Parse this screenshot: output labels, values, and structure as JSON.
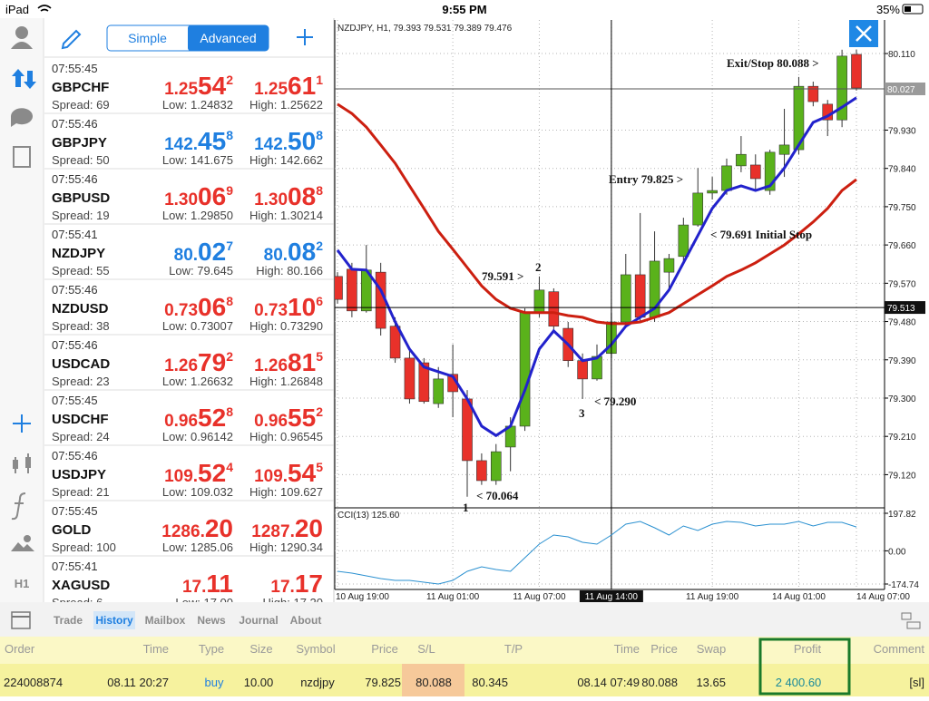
{
  "status_bar": {
    "device": "iPad",
    "time": "9:55 PM",
    "battery": "35%"
  },
  "quote_tabs": {
    "items": [
      "Simple",
      "Advanced"
    ],
    "active": "Advanced"
  },
  "quotes": [
    {
      "time": "07:55:45",
      "symbol": "GBPCHF",
      "spread": "Spread: 69",
      "bid": [
        "1.25",
        "54",
        "2"
      ],
      "ask": [
        "1.25",
        "61",
        "1"
      ],
      "low": "Low: 1.24832",
      "high": "High: 1.25622",
      "color": "#e8312a"
    },
    {
      "time": "07:55:46",
      "symbol": "GBPJPY",
      "spread": "Spread: 50",
      "bid": [
        "142.",
        "45",
        "8"
      ],
      "ask": [
        "142.",
        "50",
        "8"
      ],
      "low": "Low: 141.675",
      "high": "High: 142.662",
      "color": "#1f7fe0"
    },
    {
      "time": "07:55:46",
      "symbol": "GBPUSD",
      "spread": "Spread: 19",
      "bid": [
        "1.30",
        "06",
        "9"
      ],
      "ask": [
        "1.30",
        "08",
        "8"
      ],
      "low": "Low: 1.29850",
      "high": "High: 1.30214",
      "color": "#e8312a"
    },
    {
      "time": "07:55:41",
      "symbol": "NZDJPY",
      "spread": "Spread: 55",
      "bid": [
        "80.",
        "02",
        "7"
      ],
      "ask": [
        "80.",
        "08",
        "2"
      ],
      "low": "Low: 79.645",
      "high": "High: 80.166",
      "color": "#1f7fe0"
    },
    {
      "time": "07:55:46",
      "symbol": "NZDUSD",
      "spread": "Spread: 38",
      "bid": [
        "0.73",
        "06",
        "8"
      ],
      "ask": [
        "0.73",
        "10",
        "6"
      ],
      "low": "Low: 0.73007",
      "high": "High: 0.73290",
      "color": "#e8312a"
    },
    {
      "time": "07:55:46",
      "symbol": "USDCAD",
      "spread": "Spread: 23",
      "bid": [
        "1.26",
        "79",
        "2"
      ],
      "ask": [
        "1.26",
        "81",
        "5"
      ],
      "low": "Low: 1.26632",
      "high": "High: 1.26848",
      "color": "#e8312a"
    },
    {
      "time": "07:55:45",
      "symbol": "USDCHF",
      "spread": "Spread: 24",
      "bid": [
        "0.96",
        "52",
        "8"
      ],
      "ask": [
        "0.96",
        "55",
        "2"
      ],
      "low": "Low: 0.96142",
      "high": "High: 0.96545",
      "color": "#e8312a"
    },
    {
      "time": "07:55:46",
      "symbol": "USDJPY",
      "spread": "Spread: 21",
      "bid": [
        "109.",
        "52",
        "4"
      ],
      "ask": [
        "109.",
        "54",
        "5"
      ],
      "low": "Low: 109.032",
      "high": "High: 109.627",
      "color": "#e8312a"
    },
    {
      "time": "07:55:45",
      "symbol": "GOLD",
      "spread": "Spread: 100",
      "bid": [
        "1286.",
        "20"
      ],
      "ask": [
        "1287.",
        "20"
      ],
      "low": "Low: 1285.06",
      "high": "High: 1290.34",
      "color": "#e8312a"
    },
    {
      "time": "07:55:41",
      "symbol": "XAGUSD",
      "spread": "Spread: 6",
      "bid": [
        "17.",
        "11"
      ],
      "ask": [
        "17.",
        "17"
      ],
      "low": "Low: 17.00",
      "high": "High: 17.20",
      "color": "#e8312a"
    }
  ],
  "sidebar_label": "H1",
  "chart_data": {
    "type": "candlestick",
    "title": "NZDJPY, H1, 79.393 79.531 79.389 79.476",
    "categories": [
      "10 Aug 19:00",
      null,
      null,
      null,
      null,
      null,
      null,
      null,
      "11 Aug 01:00",
      null,
      null,
      null,
      null,
      null,
      "11 Aug 07:00",
      null,
      null,
      null,
      null,
      "11 Aug 14:00",
      null,
      null,
      null,
      null,
      null,
      null,
      "11 Aug 19:00",
      null,
      null,
      null,
      null,
      null,
      "14 Aug 01:00",
      null,
      null,
      null,
      "14 Aug 07:00"
    ],
    "open": [
      79.586,
      79.603,
      79.505,
      79.596,
      79.469,
      79.394,
      79.383,
      79.287,
      79.356,
      79.298,
      79.153,
      79.106,
      79.185,
      79.234,
      79.501,
      79.55,
      79.464,
      79.388,
      79.345,
      79.405,
      79.479,
      79.59,
      79.49,
      79.596,
      79.633,
      79.707,
      79.782,
      79.788,
      79.846,
      79.848,
      79.788,
      79.873,
      79.884,
      80.033,
      79.991,
      79.954,
      80.108
    ],
    "high": [
      79.596,
      79.618,
      79.66,
      79.618,
      79.49,
      79.415,
      79.394,
      79.373,
      79.426,
      79.319,
      79.17,
      79.192,
      79.255,
      79.511,
      79.586,
      79.558,
      79.479,
      79.405,
      79.426,
      79.501,
      79.639,
      79.735,
      79.692,
      79.639,
      79.724,
      79.841,
      79.82,
      79.863,
      79.916,
      79.873,
      79.884,
      79.98,
      80.055,
      80.044,
      80.001,
      80.119,
      80.119
    ],
    "low": [
      79.522,
      79.49,
      79.501,
      79.447,
      79.383,
      79.287,
      79.287,
      79.277,
      79.255,
      79.068,
      79.096,
      79.096,
      79.128,
      79.223,
      79.49,
      79.458,
      79.373,
      79.298,
      79.341,
      79.394,
      79.469,
      79.479,
      79.479,
      79.554,
      79.618,
      79.703,
      79.767,
      79.778,
      79.831,
      79.788,
      79.778,
      79.82,
      79.873,
      79.986,
      79.916,
      79.937,
      80.023
    ],
    "close": [
      79.532,
      79.505,
      79.601,
      79.464,
      79.394,
      79.298,
      79.292,
      79.345,
      79.315,
      79.153,
      79.106,
      79.174,
      79.234,
      79.501,
      79.554,
      79.469,
      79.388,
      79.345,
      79.398,
      79.479,
      79.59,
      79.49,
      79.622,
      79.628,
      79.707,
      79.782,
      79.788,
      79.846,
      79.873,
      79.816,
      79.878,
      79.895,
      80.033,
      79.997,
      79.954,
      80.104,
      80.029
    ],
    "up_color": "#5ab21b",
    "down_color": "#e8312a",
    "lines": [
      {
        "color": "#2222cc",
        "values": [
          79.648,
          79.603,
          79.601,
          79.554,
          79.479,
          79.415,
          79.373,
          79.362,
          79.351,
          79.298,
          79.234,
          79.212,
          79.234,
          79.319,
          79.415,
          79.458,
          79.426,
          79.388,
          79.394,
          79.426,
          79.469,
          79.49,
          79.511,
          79.554,
          79.618,
          79.682,
          79.746,
          79.788,
          79.799,
          79.788,
          79.799,
          79.841,
          79.895,
          79.948,
          79.963,
          79.984,
          80.006
        ]
      },
      {
        "color": "#cc1f10",
        "values": [
          79.991,
          79.969,
          79.937,
          79.895,
          79.852,
          79.799,
          79.746,
          79.692,
          79.65,
          79.607,
          79.564,
          79.532,
          79.511,
          79.501,
          79.501,
          79.501,
          79.494,
          79.49,
          79.479,
          79.475,
          79.475,
          79.479,
          79.49,
          79.501,
          79.522,
          79.543,
          79.564,
          79.586,
          79.601,
          79.618,
          79.639,
          79.66,
          79.686,
          79.714,
          79.746,
          79.788,
          79.814
        ]
      }
    ],
    "ylim": [
      79.042,
      80.189
    ],
    "yticks": [
      {
        "value": 80.11,
        "label": "80.110"
      },
      {
        "value": 79.93,
        "label": "79.930"
      },
      {
        "value": 79.84,
        "label": "79.840"
      },
      {
        "value": 79.75,
        "label": "79.750"
      },
      {
        "value": 79.66,
        "label": "79.660"
      },
      {
        "value": 79.57,
        "label": "79.570"
      },
      {
        "value": 79.48,
        "label": "79.480"
      },
      {
        "value": 79.39,
        "label": "79.390"
      },
      {
        "value": 79.3,
        "label": "79.300"
      },
      {
        "value": 79.21,
        "label": "79.210"
      },
      {
        "value": 79.12,
        "label": "79.120"
      }
    ],
    "grid": true,
    "price_line": {
      "value": 80.027,
      "label": "80.027"
    },
    "crosshair": {
      "value": 79.513,
      "label": "79.513"
    },
    "x_highlight": "11 Aug 14:00",
    "annotations": [
      "Exit/Stop 80.088 >",
      "Entry 79.825 >",
      "< 79.691 Initial Stop",
      "79.591 >",
      "2",
      "< 79.290",
      "3",
      "< 70.064",
      "1"
    ],
    "indicator": {
      "title": "CCI(13) 125.60",
      "color": "#2a90d0",
      "values": [
        -107.9,
        -117.4,
        -131.7,
        -146.1,
        -155.6,
        -155.6,
        -165.2,
        -174.7,
        -155.6,
        -107.9,
        -84.0,
        -98.3,
        -107.9,
        -36.2,
        35.4,
        83.2,
        73.6,
        45.0,
        35.4,
        83.2,
        140.5,
        154.8,
        121.4,
        83.2,
        130.9,
        107.1,
        140.5,
        154.8,
        150.1,
        130.9,
        140.5,
        140.5,
        154.8,
        130.9,
        150.1,
        150.1,
        125.6
      ],
      "ylim": [
        -203.4,
        226.5
      ],
      "yticks": [
        {
          "value": 197.82,
          "label": "197.82"
        },
        {
          "value": 0,
          "label": "0.00"
        },
        {
          "value": -174.74,
          "label": "-174.74"
        }
      ]
    }
  },
  "bottom_tabs": {
    "items": [
      "Trade",
      "History",
      "Mailbox",
      "News",
      "Journal",
      "About"
    ],
    "active": "History"
  },
  "history_table": {
    "headers": [
      "Order",
      "Time",
      "Type",
      "Size",
      "Symbol",
      "Price",
      "S/L",
      "T/P",
      "Time",
      "Price",
      "Swap",
      "Profit",
      "Comment"
    ],
    "rows": [
      [
        "224008874",
        "08.11 20:27",
        "buy",
        "10.00",
        "nzdjpy",
        "79.825",
        "80.088",
        "80.345",
        "08.14 07:49",
        "80.088",
        "13.65",
        "2 400.60",
        "[sl]"
      ]
    ]
  }
}
